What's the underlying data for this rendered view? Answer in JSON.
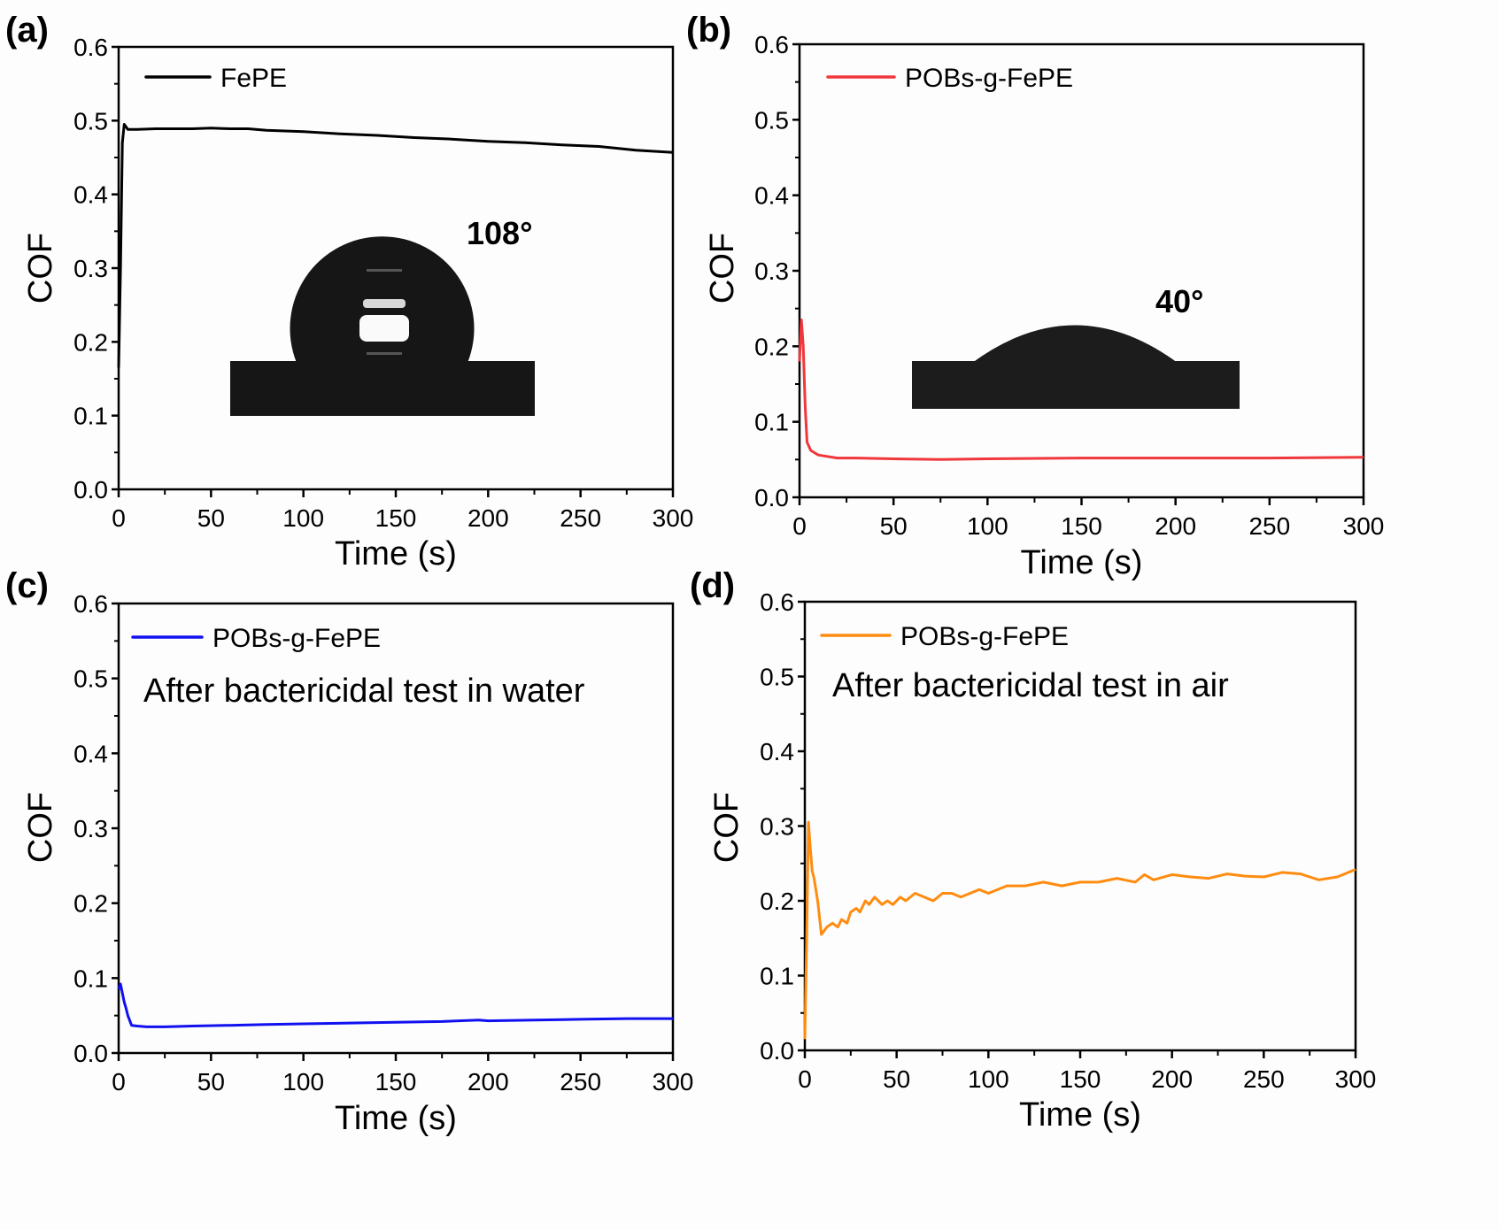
{
  "figure": {
    "background": "#fdfdfd"
  },
  "chart_data": [
    {
      "type": "line",
      "panel_label": "(a)",
      "title": "",
      "xlabel": "Time (s)",
      "ylabel": "COF",
      "xlim": [
        0,
        300
      ],
      "ylim": [
        0,
        0.6
      ],
      "xticks": [
        0,
        50,
        100,
        150,
        200,
        250,
        300
      ],
      "xtick_labels": [
        "0",
        "50",
        "100",
        "150",
        "200",
        "250",
        "300"
      ],
      "yticks": [
        0.0,
        0.1,
        0.2,
        0.3,
        0.4,
        0.5,
        0.6
      ],
      "ytick_labels": [
        "0.0",
        "0.1",
        "0.2",
        "0.3",
        "0.4",
        "0.5",
        "0.6"
      ],
      "grid": false,
      "legend_position": "top-left",
      "annotation": "",
      "inset": {
        "type": "contact-angle-droplet",
        "label": "108°",
        "shape": "sphere"
      },
      "series": [
        {
          "name": "FePE",
          "color": "#000000",
          "x": [
            0,
            1,
            2,
            3,
            5,
            10,
            20,
            30,
            40,
            50,
            60,
            70,
            80,
            100,
            120,
            140,
            160,
            180,
            200,
            220,
            240,
            260,
            280,
            300
          ],
          "y": [
            0.165,
            0.3,
            0.47,
            0.495,
            0.488,
            0.488,
            0.489,
            0.489,
            0.489,
            0.49,
            0.489,
            0.489,
            0.487,
            0.485,
            0.482,
            0.48,
            0.477,
            0.475,
            0.472,
            0.47,
            0.467,
            0.465,
            0.46,
            0.457
          ]
        }
      ]
    },
    {
      "type": "line",
      "panel_label": "(b)",
      "title": "",
      "xlabel": "Time (s)",
      "ylabel": "COF",
      "xlim": [
        0,
        300
      ],
      "ylim": [
        0,
        0.6
      ],
      "xticks": [
        0,
        50,
        100,
        150,
        200,
        250,
        300
      ],
      "xtick_labels": [
        "0",
        "50",
        "100",
        "150",
        "200",
        "250",
        "300"
      ],
      "yticks": [
        0.0,
        0.1,
        0.2,
        0.3,
        0.4,
        0.5,
        0.6
      ],
      "ytick_labels": [
        "0.0",
        "0.1",
        "0.2",
        "0.3",
        "0.4",
        "0.5",
        "0.6"
      ],
      "grid": false,
      "legend_position": "top-left",
      "annotation": "",
      "inset": {
        "type": "contact-angle-droplet",
        "label": "40°",
        "shape": "cap"
      },
      "series": [
        {
          "name": "POBs-g-FePE",
          "color": "#f0373c",
          "x": [
            0,
            1,
            2,
            3,
            4,
            6,
            10,
            20,
            30,
            50,
            75,
            100,
            150,
            200,
            250,
            300
          ],
          "y": [
            0.18,
            0.235,
            0.2,
            0.12,
            0.073,
            0.062,
            0.056,
            0.052,
            0.052,
            0.051,
            0.05,
            0.051,
            0.052,
            0.052,
            0.052,
            0.053
          ]
        }
      ]
    },
    {
      "type": "line",
      "panel_label": "(c)",
      "title": "",
      "xlabel": "Time (s)",
      "ylabel": "COF",
      "xlim": [
        0,
        300
      ],
      "ylim": [
        0,
        0.6
      ],
      "xticks": [
        0,
        50,
        100,
        150,
        200,
        250,
        300
      ],
      "xtick_labels": [
        "0",
        "50",
        "100",
        "150",
        "200",
        "250",
        "300"
      ],
      "yticks": [
        0.0,
        0.1,
        0.2,
        0.3,
        0.4,
        0.5,
        0.6
      ],
      "ytick_labels": [
        "0.0",
        "0.1",
        "0.2",
        "0.3",
        "0.4",
        "0.5",
        "0.6"
      ],
      "grid": false,
      "legend_position": "top-left",
      "annotation": "After bactericidal test in water",
      "inset": null,
      "series": [
        {
          "name": "POBs-g-FePE",
          "color": "#1010f0",
          "x": [
            0,
            1,
            2,
            3,
            4,
            5,
            7,
            10,
            15,
            25,
            40,
            60,
            80,
            100,
            125,
            150,
            175,
            195,
            200,
            225,
            250,
            275,
            300
          ],
          "y": [
            0.085,
            0.092,
            0.08,
            0.068,
            0.06,
            0.05,
            0.037,
            0.036,
            0.035,
            0.035,
            0.036,
            0.037,
            0.038,
            0.039,
            0.04,
            0.041,
            0.042,
            0.044,
            0.043,
            0.044,
            0.045,
            0.046,
            0.046
          ]
        }
      ]
    },
    {
      "type": "line",
      "panel_label": "(d)",
      "title": "",
      "xlabel": "Time (s)",
      "ylabel": "COF",
      "xlim": [
        0,
        300
      ],
      "ylim": [
        0,
        0.6
      ],
      "xticks": [
        0,
        50,
        100,
        150,
        200,
        250,
        300
      ],
      "xtick_labels": [
        "0",
        "50",
        "100",
        "150",
        "200",
        "250",
        "300"
      ],
      "yticks": [
        0.0,
        0.1,
        0.2,
        0.3,
        0.4,
        0.5,
        0.6
      ],
      "ytick_labels": [
        "0.0",
        "0.1",
        "0.2",
        "0.3",
        "0.4",
        "0.5",
        "0.6"
      ],
      "grid": false,
      "legend_position": "top-left",
      "annotation": "After bactericidal test in air",
      "inset": null,
      "series": [
        {
          "name": "POBs-g-FePE",
          "color": "#ff8c10",
          "x": [
            0,
            1,
            2,
            3,
            4,
            5,
            7,
            9,
            12,
            15,
            18,
            20,
            23,
            25,
            28,
            30,
            33,
            35,
            38,
            42,
            45,
            48,
            52,
            55,
            60,
            65,
            70,
            75,
            80,
            85,
            90,
            95,
            100,
            110,
            120,
            130,
            140,
            150,
            160,
            170,
            180,
            185,
            190,
            200,
            210,
            220,
            230,
            240,
            250,
            260,
            270,
            275,
            280,
            290,
            300
          ],
          "y": [
            0.015,
            0.15,
            0.305,
            0.27,
            0.24,
            0.23,
            0.2,
            0.155,
            0.165,
            0.17,
            0.165,
            0.175,
            0.17,
            0.185,
            0.19,
            0.185,
            0.2,
            0.195,
            0.205,
            0.195,
            0.2,
            0.195,
            0.205,
            0.2,
            0.21,
            0.205,
            0.2,
            0.21,
            0.21,
            0.205,
            0.21,
            0.215,
            0.21,
            0.22,
            0.22,
            0.225,
            0.22,
            0.225,
            0.225,
            0.23,
            0.225,
            0.235,
            0.228,
            0.235,
            0.232,
            0.23,
            0.236,
            0.233,
            0.232,
            0.238,
            0.236,
            0.232,
            0.228,
            0.232,
            0.242
          ]
        }
      ]
    }
  ]
}
